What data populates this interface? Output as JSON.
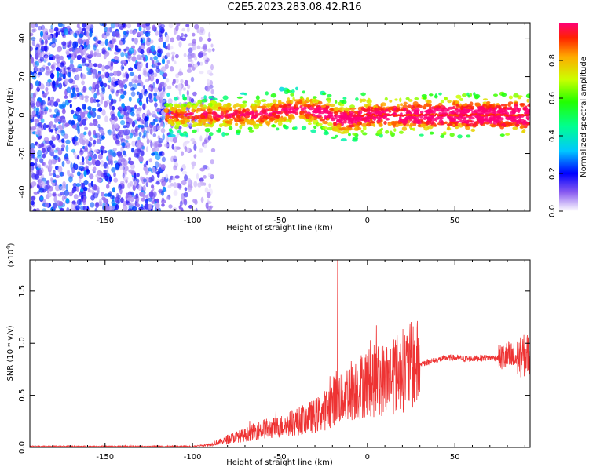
{
  "title": "C2E5.2023.283.08.42.R16",
  "chart_data": [
    {
      "type": "heatmap",
      "xlabel": "Height of straight line (km)",
      "ylabel": "Frequency (Hz)",
      "xlim": [
        -193,
        93
      ],
      "ylim": [
        -50,
        48
      ],
      "xticks": [
        -150,
        -100,
        -50,
        0,
        50
      ],
      "yticks": [
        -40,
        -20,
        0,
        20,
        40
      ],
      "colorbar": {
        "label": "Normalized spectral amplitude",
        "ticks": [
          0.0,
          0.2,
          0.4,
          0.6,
          0.8
        ],
        "range": [
          0,
          1
        ]
      },
      "regions": [
        {
          "x_from": -193,
          "x_to": -115,
          "freq_range": [
            -50,
            48
          ],
          "amplitude": [
            0.05,
            0.3
          ]
        },
        {
          "x_from": -115,
          "x_to": -88,
          "freq_range": [
            -50,
            48
          ],
          "amplitude": [
            0.02,
            0.15
          ]
        },
        {
          "x_from": -115,
          "x_to": 93,
          "freq_center": 0,
          "band_width_hz": 8,
          "amplitude": [
            0.3,
            1.0
          ]
        }
      ]
    },
    {
      "type": "line",
      "xlabel": "Height of straight line (km)",
      "ylabel": "SNR (10 * v/v)",
      "scale_label": "(x10",
      "scale_exponent": "4",
      "scale_suffix": ")",
      "xlim": [
        -193,
        93
      ],
      "ylim": [
        0,
        1.8
      ],
      "xticks": [
        -150,
        -100,
        -50,
        0,
        50
      ],
      "yticks": [
        0.0,
        0.5,
        1.0,
        1.5
      ],
      "ytick_labels": [
        "0.0",
        "0.5",
        "1.0",
        "1.5"
      ],
      "color": "#ee3333",
      "series": [
        {
          "x": [
            -193,
            -170,
            -150,
            -130,
            -110,
            -100,
            -95,
            -90,
            -85,
            -80,
            -75,
            -70,
            -65,
            -60,
            -55,
            -50,
            -45,
            -40,
            -35,
            -30,
            -25,
            -20,
            -18,
            -15,
            -10,
            -5,
            0,
            5,
            10,
            15,
            20,
            25,
            30,
            35,
            40,
            45,
            50,
            55,
            60,
            65,
            70,
            75,
            80,
            85,
            90,
            93
          ],
          "values": [
            0.01,
            0.01,
            0.01,
            0.01,
            0.01,
            0.01,
            0.02,
            0.03,
            0.05,
            0.08,
            0.1,
            0.12,
            0.15,
            0.18,
            0.18,
            0.2,
            0.22,
            0.25,
            0.28,
            0.3,
            0.35,
            0.42,
            0.5,
            0.48,
            0.55,
            0.58,
            0.62,
            0.64,
            0.66,
            0.7,
            0.74,
            0.78,
            0.8,
            0.82,
            0.84,
            0.86,
            0.86,
            0.85,
            0.85,
            0.86,
            0.86,
            0.86,
            0.87,
            0.85,
            0.88,
            0.9
          ]
        }
      ]
    }
  ]
}
